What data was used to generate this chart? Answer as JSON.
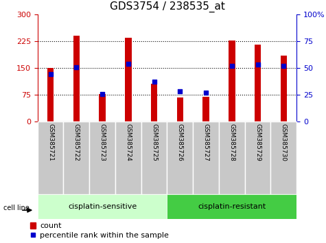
{
  "title": "GDS3754 / 238535_at",
  "samples": [
    "GSM385721",
    "GSM385722",
    "GSM385723",
    "GSM385724",
    "GSM385725",
    "GSM385726",
    "GSM385727",
    "GSM385728",
    "GSM385729",
    "GSM385730"
  ],
  "count_values": [
    150,
    240,
    78,
    235,
    105,
    68,
    70,
    228,
    215,
    185
  ],
  "percentile_values": [
    44,
    51,
    26,
    54,
    37,
    28,
    27,
    52,
    53,
    52
  ],
  "group1_label": "cisplatin-sensitive",
  "group2_label": "cisplatin-resistant",
  "group1_count": 5,
  "group2_count": 5,
  "left_ylim": [
    0,
    300
  ],
  "right_ylim": [
    0,
    100
  ],
  "left_yticks": [
    0,
    75,
    150,
    225,
    300
  ],
  "right_yticks": [
    0,
    25,
    50,
    75,
    100
  ],
  "right_yticklabels": [
    "0",
    "25",
    "50",
    "75",
    "100%"
  ],
  "bar_color": "#CC0000",
  "dot_color": "#0000CC",
  "bg_group1": "#CCFFCC",
  "bg_group2": "#44CC44",
  "title_fontsize": 11,
  "axis_fontsize": 8,
  "legend_fontsize": 8,
  "group_fontsize": 8,
  "bar_width": 0.25
}
